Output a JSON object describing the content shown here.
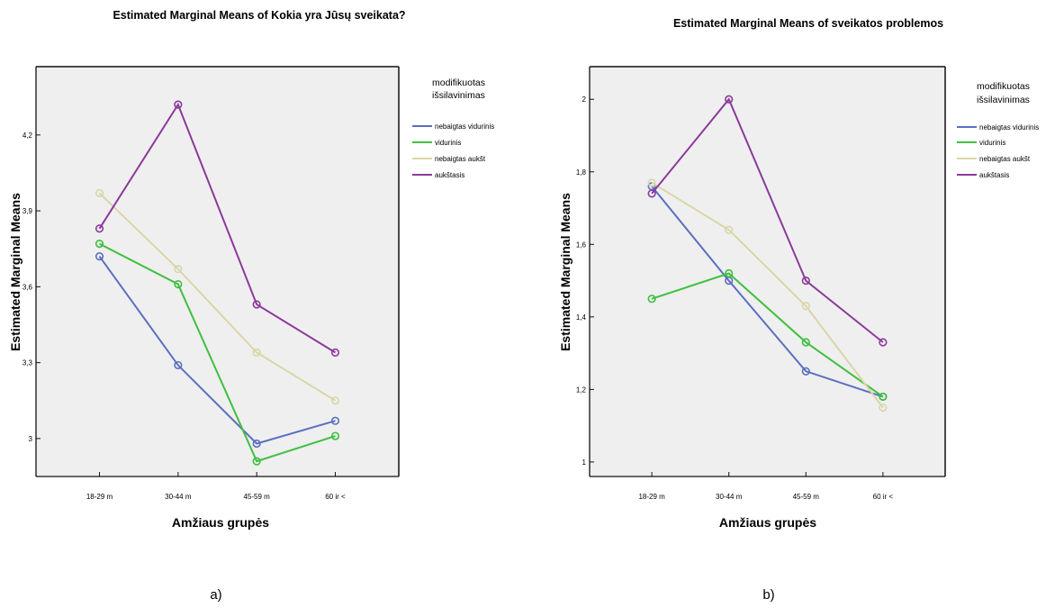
{
  "chart_data": [
    {
      "type": "line",
      "title": "Estimated Marginal Means of Kokia yra Jūsų sveikata?",
      "xlabel": "Amžiaus grupės",
      "ylabel": "Estimated Marginal Means",
      "categories": [
        "18-29 m",
        "30-44 m",
        "45-59 m",
        "60 ir <"
      ],
      "ylim": [
        2.85,
        4.47
      ],
      "yticks": [
        3.0,
        3.3,
        3.6,
        3.9,
        4.2
      ],
      "ytick_labels": [
        "3",
        "3,3",
        "3,6",
        "3,9",
        "4,2"
      ],
      "grid": false,
      "legend_position": "top-right",
      "legend_title": "modifikuotas išsilavinimas",
      "series": [
        {
          "name": "nebaigtas vidurinis",
          "color": "#5b6fc0",
          "values": [
            3.72,
            3.29,
            2.98,
            3.07
          ]
        },
        {
          "name": "vidurinis",
          "color": "#3fbf3f",
          "values": [
            3.77,
            3.61,
            2.91,
            3.01
          ]
        },
        {
          "name": "nebaigtas aukšt",
          "color": "#d9d6a8",
          "values": [
            3.97,
            3.67,
            3.34,
            3.15
          ]
        },
        {
          "name": "aukštasis",
          "color": "#8b3a9a",
          "values": [
            3.83,
            4.32,
            3.53,
            3.34
          ]
        }
      ],
      "panel_label": "a)"
    },
    {
      "type": "line",
      "title": "Estimated Marginal Means of sveikatos problemos",
      "xlabel": "Amžiaus grupės",
      "ylabel": "Estimated Marginal Means",
      "categories": [
        "18-29 m",
        "30-44 m",
        "45-59 m",
        "60 ir <"
      ],
      "ylim": [
        0.96,
        2.09
      ],
      "yticks": [
        1.0,
        1.2,
        1.4,
        1.6,
        1.8,
        2.0
      ],
      "ytick_labels": [
        "1",
        "1,2",
        "1,4",
        "1,6",
        "1,8",
        "2"
      ],
      "grid": false,
      "legend_position": "top-right",
      "legend_title": "modifikuotas išsilavinimas",
      "series": [
        {
          "name": "nebaigtas vidurinis",
          "color": "#5b6fc0",
          "values": [
            1.76,
            1.5,
            1.25,
            1.18
          ]
        },
        {
          "name": "vidurinis",
          "color": "#3fbf3f",
          "values": [
            1.45,
            1.52,
            1.33,
            1.18
          ]
        },
        {
          "name": "nebaigtas aukšt",
          "color": "#d9d6a8",
          "values": [
            1.77,
            1.64,
            1.43,
            1.15
          ]
        },
        {
          "name": "aukštasis",
          "color": "#8b3a9a",
          "values": [
            1.74,
            2.0,
            1.5,
            1.33
          ]
        }
      ],
      "panel_label": "b)"
    }
  ]
}
